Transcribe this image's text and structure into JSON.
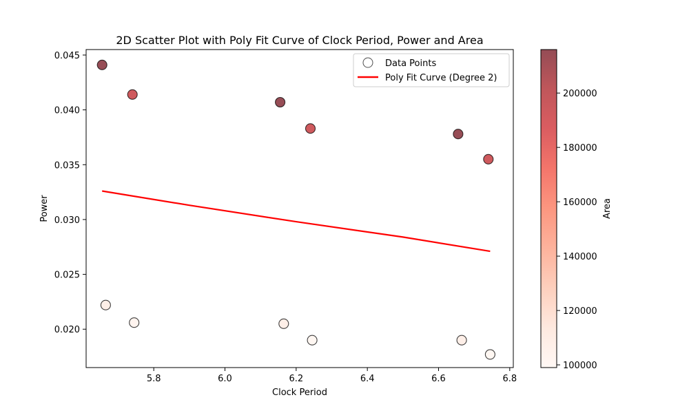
{
  "chart_data": {
    "type": "scatter",
    "title": "2D Scatter Plot with Poly Fit Curve of Clock Period, Power and Area",
    "xlabel": "Clock Period",
    "ylabel": "Power",
    "xlim": [
      5.61,
      6.81
    ],
    "ylim": [
      0.0165,
      0.0455
    ],
    "xticks": [
      5.8,
      6.0,
      6.2,
      6.4,
      6.6,
      6.8
    ],
    "xtick_labels": [
      "5.8",
      "6.0",
      "6.2",
      "6.4",
      "6.6",
      "6.8"
    ],
    "yticks": [
      0.02,
      0.025,
      0.03,
      0.035,
      0.04,
      0.045
    ],
    "ytick_labels": [
      "0.020",
      "0.025",
      "0.030",
      "0.035",
      "0.040",
      "0.045"
    ],
    "grid": false,
    "legend_position": "top-right",
    "legend": [
      "Data Points",
      "Poly Fit Curve (Degree 2)"
    ],
    "points": [
      {
        "x": 5.655,
        "y": 0.0441,
        "area": 215000
      },
      {
        "x": 5.74,
        "y": 0.0414,
        "area": 193000
      },
      {
        "x": 6.155,
        "y": 0.0407,
        "area": 215000
      },
      {
        "x": 6.24,
        "y": 0.0383,
        "area": 193000
      },
      {
        "x": 6.655,
        "y": 0.0378,
        "area": 215000
      },
      {
        "x": 6.74,
        "y": 0.0355,
        "area": 193000
      },
      {
        "x": 5.665,
        "y": 0.0222,
        "area": 108000
      },
      {
        "x": 5.745,
        "y": 0.0206,
        "area": 103000
      },
      {
        "x": 6.165,
        "y": 0.0205,
        "area": 108000
      },
      {
        "x": 6.245,
        "y": 0.019,
        "area": 100500
      },
      {
        "x": 6.665,
        "y": 0.019,
        "area": 108000
      },
      {
        "x": 6.745,
        "y": 0.0177,
        "area": 100500
      }
    ],
    "fit_curve": {
      "name": "Poly Fit Curve (Degree 2)",
      "x": [
        5.655,
        5.9,
        6.2,
        6.5,
        6.745
      ],
      "y": [
        0.0326,
        0.0313,
        0.0298,
        0.0284,
        0.0271
      ],
      "color": "#ff0000"
    },
    "colorbar": {
      "label": "Area",
      "min": 99000,
      "max": 216000,
      "ticks": [
        100000,
        120000,
        140000,
        160000,
        180000,
        200000
      ],
      "tick_labels": [
        "100000",
        "120000",
        "140000",
        "160000",
        "180000",
        "200000"
      ],
      "colormap": "Reds",
      "alpha": 0.7
    }
  }
}
